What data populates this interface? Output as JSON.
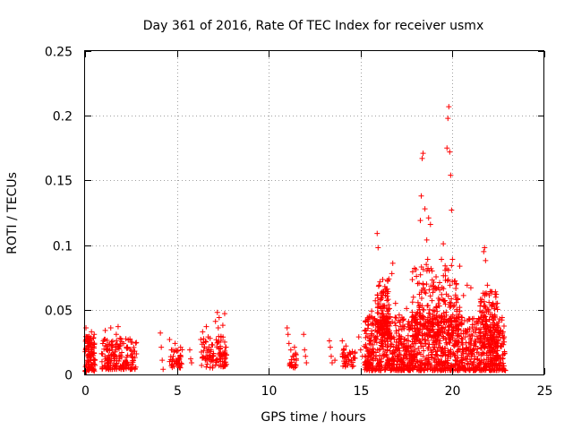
{
  "chart_data": {
    "type": "scatter",
    "title": "Day 361 of 2016, Rate Of TEC Index for receiver usmx",
    "xlabel": "GPS time / hours",
    "ylabel": "ROTI / TECUs",
    "xlim": [
      0,
      25
    ],
    "ylim": [
      0,
      0.25
    ],
    "x_ticks": [
      0,
      5,
      10,
      15,
      20,
      25
    ],
    "x_tick_labels": [
      "0",
      "5",
      "10",
      "15",
      "20",
      "25"
    ],
    "y_ticks": [
      0,
      0.05,
      0.1,
      0.15,
      0.2,
      0.25
    ],
    "y_tick_labels": [
      "0",
      "0.05",
      "0.1",
      "0.15",
      "0.2",
      "0.25"
    ],
    "grid": true,
    "marker": "+",
    "color": "#ff0000",
    "series": [
      {
        "name": "ROTI",
        "points": [
          [
            0.05,
            0.036
          ],
          [
            0.1,
            0.029
          ],
          [
            0.15,
            0.024
          ],
          [
            0.2,
            0.018
          ],
          [
            0.25,
            0.013
          ],
          [
            0.3,
            0.027
          ],
          [
            0.35,
            0.033
          ],
          [
            0.4,
            0.021
          ],
          [
            0.45,
            0.009
          ],
          [
            0.5,
            0.031
          ],
          [
            0.1,
            0.006
          ],
          [
            0.2,
            0.004
          ],
          [
            0.3,
            0.011
          ],
          [
            0.4,
            0.016
          ],
          [
            0.5,
            0.008
          ],
          [
            1.0,
            0.026
          ],
          [
            1.1,
            0.034
          ],
          [
            1.2,
            0.019
          ],
          [
            1.3,
            0.012
          ],
          [
            1.4,
            0.036
          ],
          [
            1.5,
            0.022
          ],
          [
            1.6,
            0.015
          ],
          [
            1.7,
            0.031
          ],
          [
            1.8,
            0.037
          ],
          [
            1.9,
            0.028
          ],
          [
            2.0,
            0.017
          ],
          [
            2.1,
            0.024
          ],
          [
            2.2,
            0.011
          ],
          [
            2.3,
            0.021
          ],
          [
            2.5,
            0.025
          ],
          [
            2.6,
            0.013
          ],
          [
            2.7,
            0.018
          ],
          [
            4.1,
            0.032
          ],
          [
            4.15,
            0.021
          ],
          [
            4.2,
            0.011
          ],
          [
            4.25,
            0.004
          ],
          [
            4.6,
            0.027
          ],
          [
            4.7,
            0.019
          ],
          [
            4.8,
            0.014
          ],
          [
            4.9,
            0.024
          ],
          [
            5.0,
            0.018
          ],
          [
            5.1,
            0.012
          ],
          [
            5.2,
            0.021
          ],
          [
            5.7,
            0.019
          ],
          [
            5.75,
            0.012
          ],
          [
            5.8,
            0.009
          ],
          [
            6.3,
            0.027
          ],
          [
            6.4,
            0.033
          ],
          [
            6.5,
            0.021
          ],
          [
            6.6,
            0.037
          ],
          [
            6.7,
            0.029
          ],
          [
            6.8,
            0.014
          ],
          [
            6.9,
            0.023
          ],
          [
            7.1,
            0.041
          ],
          [
            7.2,
            0.048
          ],
          [
            7.25,
            0.036
          ],
          [
            7.3,
            0.044
          ],
          [
            7.4,
            0.029
          ],
          [
            7.5,
            0.038
          ],
          [
            7.6,
            0.047
          ],
          [
            7.65,
            0.021
          ],
          [
            7.7,
            0.015
          ],
          [
            11.0,
            0.036
          ],
          [
            11.05,
            0.031
          ],
          [
            11.1,
            0.024
          ],
          [
            11.2,
            0.019
          ],
          [
            11.3,
            0.014
          ],
          [
            11.4,
            0.021
          ],
          [
            11.5,
            0.011
          ],
          [
            11.9,
            0.031
          ],
          [
            11.95,
            0.019
          ],
          [
            12.0,
            0.014
          ],
          [
            12.05,
            0.009
          ],
          [
            13.3,
            0.026
          ],
          [
            13.35,
            0.021
          ],
          [
            13.4,
            0.014
          ],
          [
            13.45,
            0.009
          ],
          [
            13.6,
            0.011
          ],
          [
            14.0,
            0.026
          ],
          [
            14.1,
            0.019
          ],
          [
            14.2,
            0.022
          ],
          [
            14.3,
            0.015
          ],
          [
            14.5,
            0.011
          ],
          [
            14.6,
            0.013
          ],
          [
            14.9,
            0.029
          ],
          [
            15.0,
            0.019
          ],
          [
            15.1,
            0.014
          ],
          [
            15.3,
            0.034
          ],
          [
            15.4,
            0.041
          ],
          [
            15.5,
            0.026
          ],
          [
            15.6,
            0.049
          ],
          [
            15.7,
            0.038
          ],
          [
            15.8,
            0.057
          ],
          [
            15.9,
            0.109
          ],
          [
            15.95,
            0.098
          ],
          [
            16.0,
            0.069
          ],
          [
            16.1,
            0.058
          ],
          [
            16.15,
            0.047
          ],
          [
            16.3,
            0.039
          ],
          [
            16.5,
            0.064
          ],
          [
            16.7,
            0.078
          ],
          [
            16.75,
            0.086
          ],
          [
            16.9,
            0.055
          ],
          [
            17.1,
            0.046
          ],
          [
            17.3,
            0.038
          ],
          [
            17.5,
            0.051
          ],
          [
            17.8,
            0.036
          ],
          [
            18.1,
            0.048
          ],
          [
            18.2,
            0.062
          ],
          [
            18.25,
            0.119
          ],
          [
            18.3,
            0.138
          ],
          [
            18.35,
            0.167
          ],
          [
            18.4,
            0.171
          ],
          [
            18.5,
            0.128
          ],
          [
            18.6,
            0.104
          ],
          [
            18.65,
            0.089
          ],
          [
            18.7,
            0.121
          ],
          [
            18.8,
            0.116
          ],
          [
            18.9,
            0.073
          ],
          [
            19.0,
            0.066
          ],
          [
            19.1,
            0.052
          ],
          [
            19.3,
            0.071
          ],
          [
            19.4,
            0.089
          ],
          [
            19.5,
            0.101
          ],
          [
            19.6,
            0.084
          ],
          [
            19.7,
            0.175
          ],
          [
            19.75,
            0.198
          ],
          [
            19.8,
            0.207
          ],
          [
            19.85,
            0.172
          ],
          [
            19.9,
            0.154
          ],
          [
            19.95,
            0.127
          ],
          [
            20.0,
            0.089
          ],
          [
            20.2,
            0.058
          ],
          [
            20.4,
            0.049
          ],
          [
            20.6,
            0.061
          ],
          [
            20.8,
            0.069
          ],
          [
            21.0,
            0.067
          ],
          [
            21.5,
            0.049
          ],
          [
            21.6,
            0.058
          ],
          [
            21.7,
            0.095
          ],
          [
            21.75,
            0.098
          ],
          [
            21.8,
            0.088
          ],
          [
            21.9,
            0.069
          ],
          [
            22.0,
            0.061
          ],
          [
            22.1,
            0.064
          ],
          [
            22.2,
            0.055
          ],
          [
            22.3,
            0.046
          ],
          [
            22.5,
            0.032
          ],
          [
            22.7,
            0.024
          ],
          [
            15.5,
            0.009
          ],
          [
            15.8,
            0.012
          ],
          [
            16.0,
            0.019
          ],
          [
            16.2,
            0.022
          ],
          [
            16.4,
            0.015
          ],
          [
            16.6,
            0.028
          ],
          [
            16.8,
            0.021
          ],
          [
            17.0,
            0.011
          ],
          [
            17.2,
            0.024
          ],
          [
            17.4,
            0.018
          ],
          [
            17.6,
            0.026
          ],
          [
            17.9,
            0.014
          ],
          [
            18.0,
            0.029
          ],
          [
            18.2,
            0.032
          ],
          [
            18.5,
            0.024
          ],
          [
            18.8,
            0.035
          ],
          [
            19.0,
            0.021
          ],
          [
            19.2,
            0.027
          ],
          [
            19.5,
            0.018
          ],
          [
            19.8,
            0.025
          ],
          [
            20.0,
            0.032
          ],
          [
            20.3,
            0.022
          ],
          [
            20.5,
            0.015
          ],
          [
            20.7,
            0.029
          ],
          [
            20.9,
            0.021
          ],
          [
            21.2,
            0.012
          ],
          [
            21.5,
            0.028
          ],
          [
            21.8,
            0.035
          ],
          [
            22.0,
            0.022
          ],
          [
            22.3,
            0.018
          ],
          [
            22.6,
            0.012
          ]
        ],
        "clusters": [
          {
            "x": [
              0.0,
              0.55
            ],
            "y": [
              0.002,
              0.03
            ],
            "n": 90
          },
          {
            "x": [
              0.9,
              2.8
            ],
            "y": [
              0.004,
              0.028
            ],
            "n": 160
          },
          {
            "x": [
              4.6,
              5.3
            ],
            "y": [
              0.005,
              0.02
            ],
            "n": 40
          },
          {
            "x": [
              6.3,
              7.0
            ],
            "y": [
              0.005,
              0.028
            ],
            "n": 45
          },
          {
            "x": [
              7.1,
              7.7
            ],
            "y": [
              0.006,
              0.03
            ],
            "n": 50
          },
          {
            "x": [
              11.1,
              11.5
            ],
            "y": [
              0.005,
              0.018
            ],
            "n": 20
          },
          {
            "x": [
              14.0,
              14.7
            ],
            "y": [
              0.006,
              0.02
            ],
            "n": 35
          },
          {
            "x": [
              15.2,
              22.9
            ],
            "y": [
              0.003,
              0.045
            ],
            "n": 1200
          },
          {
            "x": [
              15.9,
              16.6
            ],
            "y": [
              0.03,
              0.075
            ],
            "n": 120
          },
          {
            "x": [
              17.8,
              20.4
            ],
            "y": [
              0.03,
              0.085
            ],
            "n": 220
          },
          {
            "x": [
              21.5,
              22.5
            ],
            "y": [
              0.02,
              0.065
            ],
            "n": 110
          }
        ]
      }
    ]
  }
}
